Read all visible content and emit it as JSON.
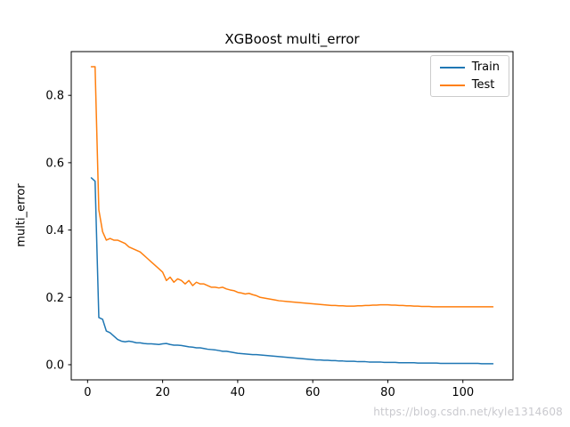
{
  "figure": {
    "watermark": "https://blog.csdn.net/kyle1314608"
  },
  "chart_data": {
    "type": "line",
    "title": "XGBoost multi_error",
    "xlabel": "",
    "ylabel": "multi_error",
    "xlim": [
      -4.35,
      113.35
    ],
    "ylim": [
      -0.045,
      0.93
    ],
    "xticks": [
      0,
      20,
      40,
      60,
      80,
      100
    ],
    "yticks": [
      0.0,
      0.2,
      0.4,
      0.6,
      0.8
    ],
    "grid": false,
    "legend_position": "upper right",
    "x_start": 1,
    "series": [
      {
        "name": "Train",
        "color": "#1f77b4",
        "values": [
          0.555,
          0.545,
          0.14,
          0.135,
          0.1,
          0.095,
          0.085,
          0.075,
          0.07,
          0.068,
          0.07,
          0.068,
          0.065,
          0.065,
          0.063,
          0.062,
          0.062,
          0.061,
          0.06,
          0.062,
          0.063,
          0.06,
          0.058,
          0.058,
          0.057,
          0.055,
          0.053,
          0.052,
          0.05,
          0.05,
          0.048,
          0.046,
          0.045,
          0.044,
          0.042,
          0.04,
          0.04,
          0.038,
          0.036,
          0.034,
          0.033,
          0.032,
          0.031,
          0.03,
          0.03,
          0.029,
          0.028,
          0.027,
          0.026,
          0.025,
          0.024,
          0.023,
          0.022,
          0.021,
          0.02,
          0.019,
          0.018,
          0.017,
          0.016,
          0.015,
          0.014,
          0.014,
          0.013,
          0.013,
          0.012,
          0.012,
          0.011,
          0.011,
          0.01,
          0.01,
          0.01,
          0.009,
          0.009,
          0.009,
          0.008,
          0.008,
          0.008,
          0.008,
          0.007,
          0.007,
          0.007,
          0.007,
          0.006,
          0.006,
          0.006,
          0.006,
          0.006,
          0.005,
          0.005,
          0.005,
          0.005,
          0.005,
          0.005,
          0.004,
          0.004,
          0.004,
          0.004,
          0.004,
          0.004,
          0.004,
          0.004,
          0.004,
          0.004,
          0.004,
          0.003,
          0.003,
          0.003,
          0.003
        ]
      },
      {
        "name": "Test",
        "color": "#ff7f0e",
        "values": [
          0.885,
          0.885,
          0.46,
          0.395,
          0.37,
          0.375,
          0.37,
          0.37,
          0.365,
          0.36,
          0.35,
          0.345,
          0.34,
          0.335,
          0.325,
          0.315,
          0.305,
          0.295,
          0.285,
          0.275,
          0.25,
          0.26,
          0.245,
          0.255,
          0.25,
          0.24,
          0.25,
          0.235,
          0.245,
          0.24,
          0.24,
          0.235,
          0.23,
          0.23,
          0.228,
          0.23,
          0.225,
          0.222,
          0.22,
          0.215,
          0.213,
          0.21,
          0.212,
          0.208,
          0.205,
          0.2,
          0.198,
          0.196,
          0.194,
          0.192,
          0.19,
          0.189,
          0.188,
          0.187,
          0.186,
          0.185,
          0.184,
          0.183,
          0.182,
          0.181,
          0.18,
          0.179,
          0.178,
          0.177,
          0.176,
          0.176,
          0.175,
          0.175,
          0.174,
          0.174,
          0.174,
          0.175,
          0.175,
          0.176,
          0.176,
          0.177,
          0.177,
          0.178,
          0.178,
          0.178,
          0.177,
          0.177,
          0.176,
          0.176,
          0.175,
          0.175,
          0.174,
          0.174,
          0.173,
          0.173,
          0.173,
          0.172,
          0.172,
          0.172,
          0.172,
          0.172,
          0.172,
          0.172,
          0.172,
          0.172,
          0.172,
          0.172,
          0.172,
          0.172,
          0.172,
          0.172,
          0.172,
          0.172
        ]
      }
    ]
  }
}
